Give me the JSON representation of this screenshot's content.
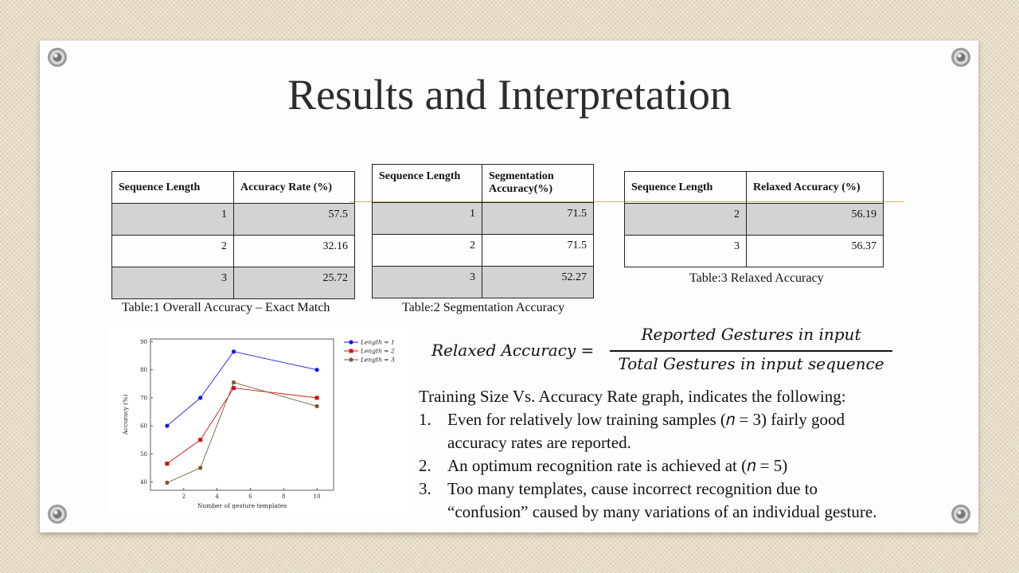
{
  "slide": {
    "title": "Results and Interpretation"
  },
  "table1": {
    "headers": [
      "Sequence Length",
      "Accuracy Rate (%)"
    ],
    "rows": [
      [
        "1",
        "57.5"
      ],
      [
        "2",
        "32.16"
      ],
      [
        "3",
        "25.72"
      ]
    ],
    "caption": "Table:1 Overall Accuracy – Exact Match"
  },
  "table2": {
    "headers": [
      "Sequence Length",
      "Segmentation Accuracy(%)"
    ],
    "rows": [
      [
        "1",
        "71.5"
      ],
      [
        "2",
        "71.5"
      ],
      [
        "3",
        "52.27"
      ]
    ],
    "caption": "Table:2 Segmentation Accuracy"
  },
  "table3": {
    "headers": [
      "Sequence Length",
      "Relaxed Accuracy (%)"
    ],
    "rows": [
      [
        "2",
        "56.19"
      ],
      [
        "3",
        "56.37"
      ]
    ],
    "caption": "Table:3 Relaxed Accuracy"
  },
  "formula": {
    "lhs": "Relaxed Accuracy =",
    "numerator": "Reported Gestures in input",
    "denominator": "Total Gestures in input sequence"
  },
  "notes": {
    "intro": "Training Size Vs. Accuracy Rate graph, indicates the following:",
    "items": [
      {
        "n": "1.",
        "line1": "Even for relatively low training samples (𝑛 = 3) fairly good",
        "line2": "accuracy rates are reported."
      },
      {
        "n": "2.",
        "line1": "An optimum recognition rate is achieved at (𝑛 = 5)"
      },
      {
        "n": "3.",
        "line1": "Too many templates,  cause incorrect recognition due to",
        "line2": "“confusion” caused by many variations of an individual gesture."
      }
    ]
  },
  "chart_data": {
    "type": "line",
    "xlabel": "Number of gesture templates",
    "ylabel": "Accuracy (%)",
    "xlim": [
      0,
      11
    ],
    "ylim": [
      37,
      91
    ],
    "xticks": [
      2,
      4,
      6,
      8,
      10
    ],
    "yticks": [
      40,
      50,
      60,
      70,
      80,
      90
    ],
    "legend_position": "top-right",
    "series": [
      {
        "name": "Length = 1",
        "color": "#1414e6",
        "marker": "circle",
        "x": [
          1,
          3,
          5,
          10
        ],
        "y": [
          60,
          70,
          86.5,
          80
        ]
      },
      {
        "name": "Length = 2",
        "color": "#d81010",
        "marker": "square",
        "x": [
          1,
          3,
          5,
          10
        ],
        "y": [
          46.5,
          55,
          73.5,
          70
        ]
      },
      {
        "name": "Length = 3",
        "color": "#7b5a3a",
        "marker": "circle",
        "x": [
          1,
          3,
          5,
          10
        ],
        "y": [
          39.7,
          45,
          75.5,
          67
        ]
      }
    ]
  }
}
